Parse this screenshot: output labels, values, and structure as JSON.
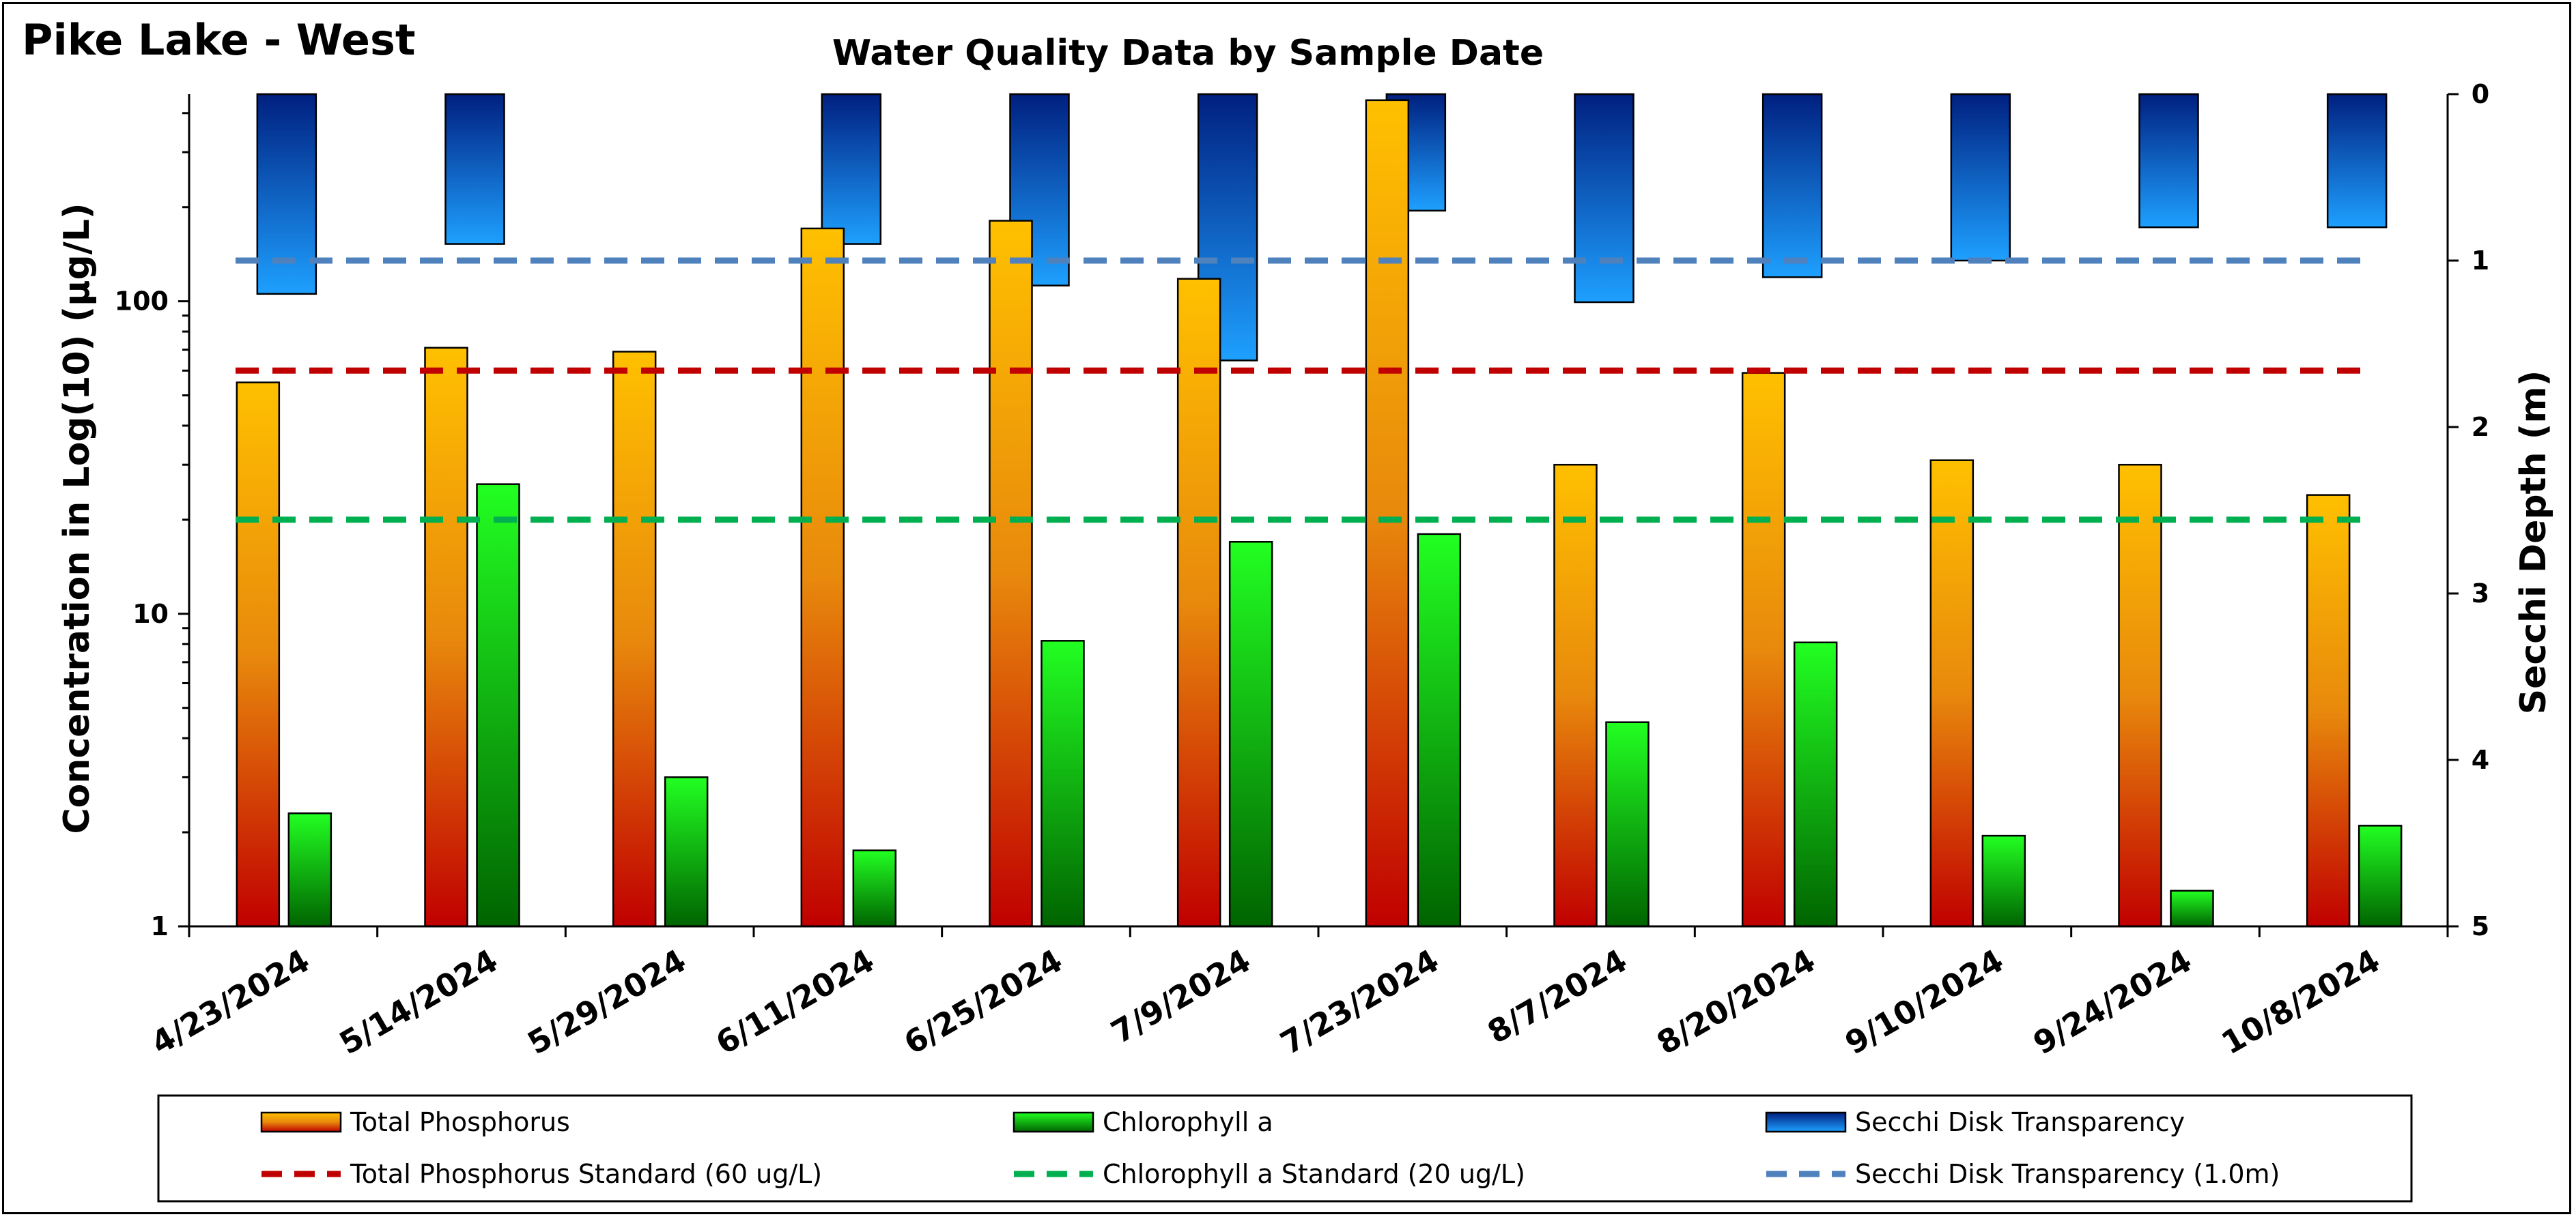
{
  "header": {
    "corner_title": "Pike Lake - West"
  },
  "colors": {
    "tp_top": "#FFC000",
    "tp_mid": "#E8890C",
    "tp_bottom": "#C00000",
    "chl_top": "#22FF22",
    "chl_bottom": "#006400",
    "secchi_top": "#002080",
    "secchi_bottom": "#1EA0FF",
    "tp_standard": "#C00000",
    "chl_standard": "#00B050",
    "secchi_standard": "#4F81BD"
  },
  "chart_data": {
    "type": "bar",
    "title": "Water Quality Data by Sample Date",
    "ylabel": "Concentration in Log(10)  (µg/L)",
    "y2label": "Secchi Depth (m)",
    "yscale": "log",
    "ylim": [
      1,
      460
    ],
    "y_ticks": [
      1,
      10,
      100
    ],
    "y2lim": [
      0,
      5
    ],
    "y2_inverted": true,
    "y2_ticks": [
      0,
      1,
      2,
      3,
      4,
      5
    ],
    "categories": [
      "4/23/2024",
      "5/14/2024",
      "5/29/2024",
      "6/11/2024",
      "6/25/2024",
      "7/9/2024",
      "7/23/2024",
      "8/7/2024",
      "8/20/2024",
      "9/10/2024",
      "9/24/2024",
      "10/8/2024"
    ],
    "series": [
      {
        "name": "Total Phosphorus",
        "axis": "left",
        "values": [
          55,
          71,
          69,
          171,
          181,
          118,
          440,
          30,
          59,
          31,
          30,
          24
        ]
      },
      {
        "name": "Chlorophyll a",
        "axis": "left",
        "values": [
          2.3,
          26,
          3.0,
          1.75,
          8.2,
          17,
          18,
          4.5,
          8.1,
          1.95,
          1.3,
          2.1
        ]
      },
      {
        "name": "Secchi Disk Transparency",
        "axis": "right",
        "values": [
          1.2,
          0.9,
          null,
          0.9,
          1.15,
          1.6,
          0.7,
          1.25,
          1.1,
          1.0,
          0.8,
          0.8
        ]
      }
    ],
    "reference_lines": [
      {
        "name": "Total Phosphorus Standard (60 ug/L)",
        "axis": "left",
        "value": 60
      },
      {
        "name": "Chlorophyll a Standard (20 ug/L)",
        "axis": "left",
        "value": 20
      },
      {
        "name": "Secchi Disk Transparency (1.0m)",
        "axis": "right",
        "value": 1.0
      }
    ],
    "legend": {
      "position": "bottom",
      "items": [
        "Total Phosphorus",
        "Chlorophyll a",
        "Secchi Disk Transparency",
        "Total Phosphorus Standard (60 ug/L)",
        "Chlorophyll a Standard (20 ug/L)",
        "Secchi Disk Transparency (1.0m)"
      ]
    },
    "grid": false
  }
}
